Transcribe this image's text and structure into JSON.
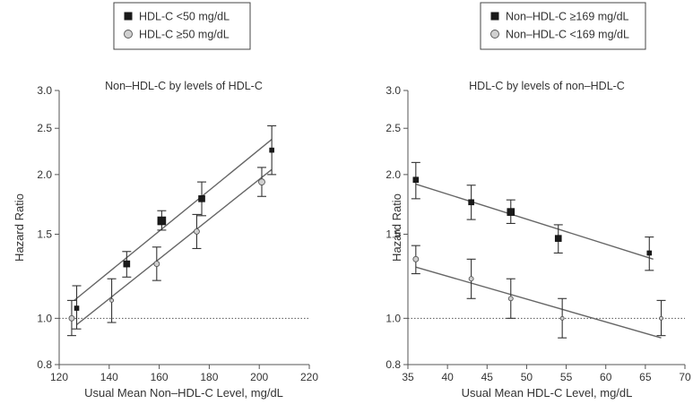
{
  "chart_data": [
    {
      "type": "scatter",
      "title": "Non–HDL-C by levels of HDL-C",
      "xlabel": "Usual Mean Non–HDL-C Level, mg/dL",
      "ylabel": "Hazard Ratio",
      "xlim": [
        120,
        220
      ],
      "ylim": [
        0.8,
        3.0
      ],
      "y_scale": "log",
      "x_ticks": [
        120,
        140,
        160,
        180,
        200,
        220
      ],
      "y_ticks": [
        0.8,
        1.0,
        1.5,
        2.0,
        2.5,
        3.0
      ],
      "y_tick_labels": [
        "0.8",
        "1.0",
        "1.5",
        "2.0",
        "2.5",
        "3.0"
      ],
      "reference_line_y": 1.0,
      "legend": {
        "placement": "top-center"
      },
      "series": [
        {
          "name": "HDL-C <50 mg/dL",
          "marker": "filled-square",
          "color": "#1a1a1a",
          "points": [
            {
              "x": 127,
              "y": 1.05,
              "lo": 0.95,
              "hi": 1.17,
              "size": 5
            },
            {
              "x": 147,
              "y": 1.3,
              "lo": 1.22,
              "hi": 1.38,
              "size": 7
            },
            {
              "x": 161,
              "y": 1.6,
              "lo": 1.53,
              "hi": 1.68,
              "size": 9
            },
            {
              "x": 177,
              "y": 1.78,
              "lo": 1.64,
              "hi": 1.93,
              "size": 7
            },
            {
              "x": 205,
              "y": 2.25,
              "lo": 2.0,
              "hi": 2.53,
              "size": 5
            }
          ],
          "fit_line": {
            "x": [
              126,
              205
            ],
            "y": [
              1.09,
              2.37
            ]
          }
        },
        {
          "name": "HDL-C ≥50 mg/dL",
          "marker": "open-circle",
          "color": "#d0d0d0",
          "points": [
            {
              "x": 125,
              "y": 1.0,
              "lo": 0.92,
              "hi": 1.09,
              "size": 6
            },
            {
              "x": 141,
              "y": 1.09,
              "lo": 0.98,
              "hi": 1.21,
              "size": 4
            },
            {
              "x": 159,
              "y": 1.3,
              "lo": 1.2,
              "hi": 1.41,
              "size": 6
            },
            {
              "x": 175,
              "y": 1.52,
              "lo": 1.4,
              "hi": 1.65,
              "size": 6
            },
            {
              "x": 201,
              "y": 1.93,
              "lo": 1.8,
              "hi": 2.07,
              "size": 7
            }
          ],
          "fit_line": {
            "x": [
              127,
              205
            ],
            "y": [
              0.97,
              2.05
            ]
          }
        }
      ]
    },
    {
      "type": "scatter",
      "title": "HDL-C by levels of non–HDL-C",
      "xlabel": "Usual Mean HDL-C Level, mg/dL",
      "ylabel": "Hazard Ratio",
      "xlim": [
        35,
        70
      ],
      "ylim": [
        0.8,
        3.0
      ],
      "y_scale": "log",
      "x_ticks": [
        35,
        40,
        45,
        50,
        55,
        60,
        65,
        70
      ],
      "y_ticks": [
        0.8,
        1.0,
        1.5,
        2.0,
        2.5,
        3.0
      ],
      "y_tick_labels": [
        "0.8",
        "1.0",
        "1.5",
        "2.0",
        "2.5",
        "3.0"
      ],
      "reference_line_y": 1.0,
      "legend": {
        "placement": "top-center"
      },
      "series": [
        {
          "name": "Non–HDL-C ≥169 mg/dL",
          "marker": "filled-square",
          "color": "#1a1a1a",
          "points": [
            {
              "x": 36,
              "y": 1.95,
              "lo": 1.78,
              "hi": 2.12,
              "size": 6
            },
            {
              "x": 43,
              "y": 1.75,
              "lo": 1.61,
              "hi": 1.9,
              "size": 6
            },
            {
              "x": 48,
              "y": 1.67,
              "lo": 1.58,
              "hi": 1.77,
              "size": 8
            },
            {
              "x": 54,
              "y": 1.47,
              "lo": 1.37,
              "hi": 1.57,
              "size": 7
            },
            {
              "x": 65.5,
              "y": 1.37,
              "lo": 1.26,
              "hi": 1.48,
              "size": 5
            }
          ],
          "fit_line": {
            "x": [
              36,
              66
            ],
            "y": [
              1.91,
              1.33
            ]
          }
        },
        {
          "name": "Non–HDL-C <169 mg/dL",
          "marker": "open-circle",
          "color": "#d0d0d0",
          "points": [
            {
              "x": 36,
              "y": 1.33,
              "lo": 1.24,
              "hi": 1.42,
              "size": 6
            },
            {
              "x": 43,
              "y": 1.21,
              "lo": 1.1,
              "hi": 1.33,
              "size": 5
            },
            {
              "x": 48,
              "y": 1.1,
              "lo": 1.0,
              "hi": 1.21,
              "size": 5
            },
            {
              "x": 54.5,
              "y": 1.0,
              "lo": 0.91,
              "hi": 1.1,
              "size": 4
            },
            {
              "x": 67,
              "y": 1.0,
              "lo": 0.92,
              "hi": 1.09,
              "size": 4
            }
          ],
          "fit_line": {
            "x": [
              36,
              67
            ],
            "y": [
              1.28,
              0.91
            ]
          }
        }
      ]
    }
  ]
}
